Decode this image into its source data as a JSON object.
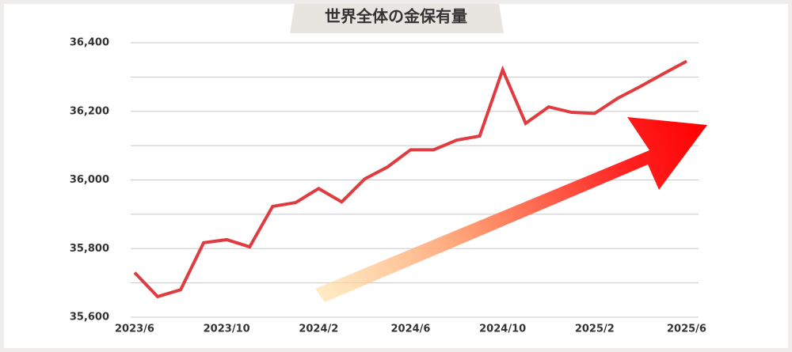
{
  "chart_data": {
    "type": "line",
    "title": "世界全体の金保有量",
    "categories": [
      "2023/6",
      null,
      null,
      null,
      "2023/10",
      null,
      null,
      null,
      "2024/2",
      null,
      null,
      null,
      "2024/6",
      null,
      null,
      null,
      "2024/10",
      null,
      null,
      null,
      "2025/2",
      null,
      null,
      null,
      "2025/6"
    ],
    "series": [
      {
        "name": null,
        "color": "#e03c3f",
        "values": [
          35730,
          35660,
          35680,
          35817,
          35826,
          35805,
          35923,
          35934,
          35975,
          35936,
          36003,
          36038,
          36088,
          36088,
          36116,
          36128,
          36321,
          36165,
          36213,
          36197,
          36194,
          36238,
          36273,
          36310,
          36346
        ]
      }
    ],
    "ylim": [
      35600,
      36400
    ],
    "yticks": [
      {
        "value": 35600,
        "label": "35,600"
      },
      {
        "value": 35800,
        "label": "35,800"
      },
      {
        "value": 36000,
        "label": "36,000"
      },
      {
        "value": 36200,
        "label": "36,200"
      },
      {
        "value": 36400,
        "label": "36,400"
      }
    ],
    "yminor": [
      35700,
      35900,
      36100,
      36300
    ],
    "grid": true
  }
}
